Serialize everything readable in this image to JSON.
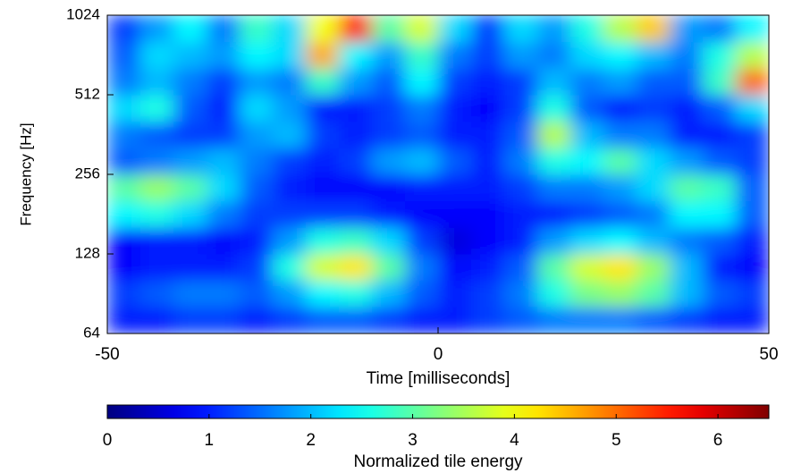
{
  "chart_data": {
    "type": "heatmap",
    "xlabel": "Time [milliseconds]",
    "ylabel": "Frequency [Hz]",
    "x": [
      -47.5,
      -42.5,
      -37.5,
      -32.5,
      -27.5,
      -22.5,
      -17.5,
      -12.5,
      -7.5,
      -2.5,
      2.5,
      7.5,
      12.5,
      17.5,
      22.5,
      27.5,
      32.5,
      37.5,
      42.5,
      47.5
    ],
    "y": [
      72,
      91,
      114,
      144,
      181,
      228,
      287,
      362,
      456,
      575,
      724,
      912
    ],
    "z": [
      [
        1,
        1,
        1.2,
        1.2,
        1,
        1.2,
        1.4,
        1.4,
        1.2,
        1,
        1,
        1.2,
        1.4,
        1.6,
        1.6,
        1.6,
        1.4,
        1.2,
        1,
        1
      ],
      [
        1.2,
        1.4,
        1.6,
        1.6,
        1.4,
        1.8,
        2.4,
        2.6,
        2,
        1.4,
        1,
        1.2,
        1.6,
        2.6,
        3.2,
        3.4,
        3,
        2,
        1.4,
        1.2
      ],
      [
        0.8,
        1,
        1,
        1,
        1.2,
        2.6,
        3.8,
        4.2,
        3,
        1.6,
        0.8,
        1,
        1.4,
        3,
        3.8,
        4.2,
        3.4,
        2,
        1,
        0.8
      ],
      [
        0.8,
        1,
        1,
        0.8,
        1,
        1.8,
        2.6,
        2.8,
        2.2,
        1.2,
        0.6,
        0.8,
        1,
        1.8,
        2.2,
        2.4,
        2,
        1.6,
        1.4,
        1
      ],
      [
        2.4,
        2.6,
        2.2,
        1.6,
        1.2,
        1.2,
        1.2,
        1.2,
        1,
        0.8,
        0.8,
        0.8,
        1,
        1,
        1.2,
        1.4,
        1.6,
        2.4,
        2.4,
        1.4
      ],
      [
        3,
        3.4,
        3,
        2.2,
        1.4,
        1,
        0.8,
        0.8,
        0.8,
        1,
        1,
        1,
        1.2,
        1.6,
        1.6,
        1.8,
        2.2,
        3,
        2.8,
        1.4
      ],
      [
        1.4,
        1.6,
        1.8,
        2,
        1.6,
        1.2,
        1,
        1.2,
        1.8,
        2,
        1.4,
        1,
        1.6,
        2.6,
        2.4,
        3,
        2.2,
        1.8,
        1.4,
        1.2
      ],
      [
        1.6,
        1.4,
        1.2,
        1.2,
        1.8,
        2,
        1.2,
        1,
        1.2,
        1.4,
        1,
        1,
        1.4,
        3.6,
        2,
        1.6,
        1.6,
        1,
        1,
        1.2
      ],
      [
        2.2,
        2.6,
        1.4,
        1,
        2.2,
        1.8,
        1,
        1,
        1.2,
        1.6,
        1,
        0.8,
        1.2,
        2.6,
        1.4,
        1,
        1.2,
        1,
        1.4,
        2.2
      ],
      [
        1.6,
        2,
        1.6,
        1.2,
        1.8,
        1.6,
        2.8,
        1.8,
        1.4,
        2.4,
        1.2,
        1,
        1.2,
        2,
        1.6,
        1.8,
        1.4,
        1.4,
        2.8,
        5
      ],
      [
        1.4,
        2.2,
        2,
        1.8,
        2.4,
        2.2,
        4.6,
        2.4,
        1.8,
        2.8,
        1.6,
        1.2,
        1.8,
        1.6,
        2.2,
        2.4,
        2,
        1.6,
        2.6,
        3.6
      ],
      [
        1.2,
        1.8,
        2.4,
        1.6,
        2.8,
        2.2,
        4,
        5.6,
        3,
        3.8,
        2.2,
        1.2,
        2.2,
        1.8,
        2.6,
        3.6,
        4.4,
        1.8,
        1.6,
        2.4
      ]
    ],
    "xlim": [
      -50,
      50
    ],
    "xticks": [
      -50,
      0,
      50
    ],
    "ylim": [
      64,
      1024
    ],
    "yticks": [
      64,
      128,
      256,
      512,
      1024
    ],
    "yscale": "log",
    "colormap": "jet",
    "colorbar": {
      "label": "Normalized tile energy",
      "lim": [
        0,
        6.5
      ],
      "ticks": [
        0,
        1,
        2,
        3,
        4,
        5,
        6
      ]
    }
  }
}
